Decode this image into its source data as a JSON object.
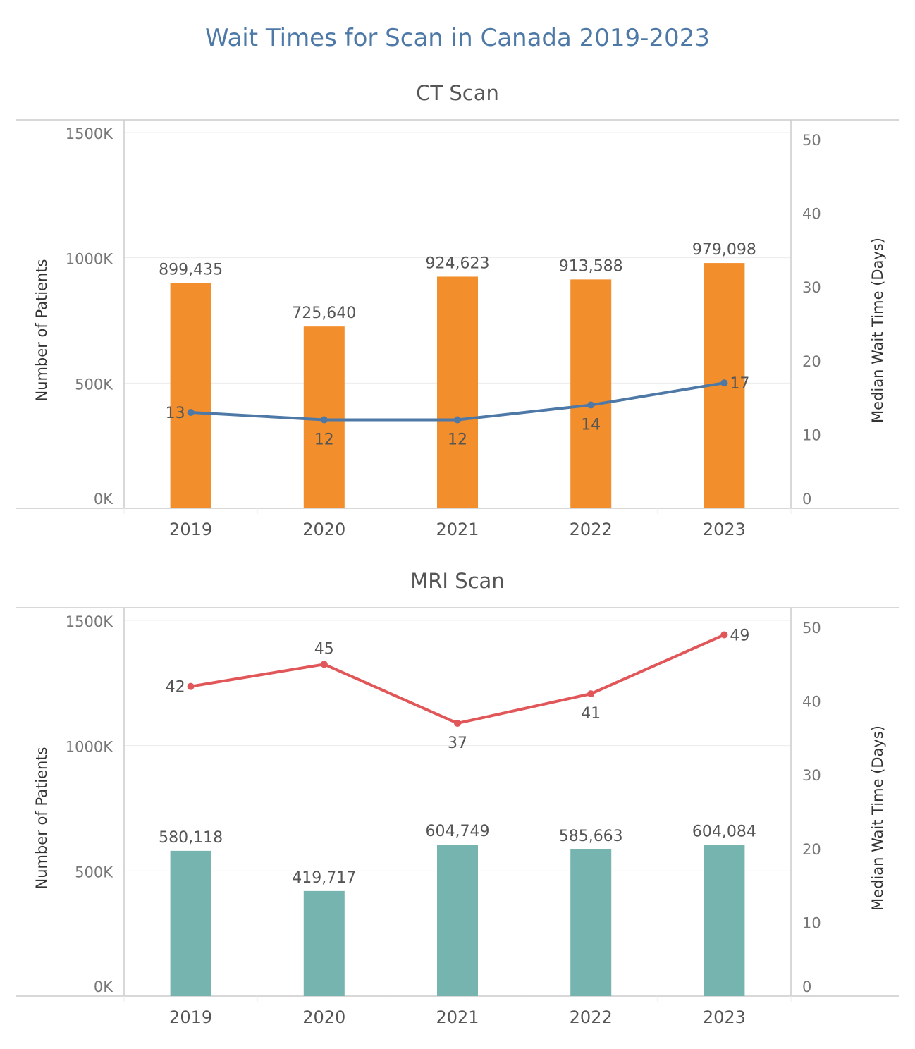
{
  "page_title": "Wait Times for Scan in Canada 2019-2023",
  "colors": {
    "title": "#4e79a7",
    "text": "#555555",
    "tick": "#777777",
    "axis": "#cccccc",
    "grid": "#ececec"
  },
  "chart_data": [
    {
      "type": "bar",
      "title": "CT Scan",
      "categories": [
        "2019",
        "2020",
        "2021",
        "2022",
        "2023"
      ],
      "ylabel": "Number of Patients",
      "y2label": "Median Wait Time  (Days)",
      "ylim": [
        0,
        1500000
      ],
      "y2lim": [
        0,
        50
      ],
      "yticks": [
        {
          "v": 0,
          "label": "0K"
        },
        {
          "v": 500000,
          "label": "500K"
        },
        {
          "v": 1000000,
          "label": "1000K"
        },
        {
          "v": 1500000,
          "label": "1500K"
        }
      ],
      "y2ticks": [
        {
          "v": 0,
          "label": "0"
        },
        {
          "v": 10,
          "label": "10"
        },
        {
          "v": 20,
          "label": "20"
        },
        {
          "v": 30,
          "label": "30"
        },
        {
          "v": 40,
          "label": "40"
        },
        {
          "v": 50,
          "label": "50"
        }
      ],
      "bar_color": "#f28e2b",
      "bars": [
        {
          "v": 899435,
          "label": "899,435"
        },
        {
          "v": 725640,
          "label": "725,640"
        },
        {
          "v": 924623,
          "label": "924,623"
        },
        {
          "v": 913588,
          "label": "913,588"
        },
        {
          "v": 979098,
          "label": "979,098"
        }
      ],
      "line_color": "#4e79a7",
      "line": [
        {
          "v": 13,
          "label": "13",
          "pos": "left"
        },
        {
          "v": 12,
          "label": "12",
          "pos": "below"
        },
        {
          "v": 12,
          "label": "12",
          "pos": "below"
        },
        {
          "v": 14,
          "label": "14",
          "pos": "below"
        },
        {
          "v": 17,
          "label": "17",
          "pos": "right"
        }
      ],
      "grid": true
    },
    {
      "type": "bar",
      "title": "MRI Scan",
      "categories": [
        "2019",
        "2020",
        "2021",
        "2022",
        "2023"
      ],
      "ylabel": "Number of Patients",
      "y2label": "Median Wait Time  (Days)",
      "ylim": [
        0,
        1500000
      ],
      "y2lim": [
        0,
        50
      ],
      "yticks": [
        {
          "v": 0,
          "label": "0K"
        },
        {
          "v": 500000,
          "label": "500K"
        },
        {
          "v": 1000000,
          "label": "1000K"
        },
        {
          "v": 1500000,
          "label": "1500K"
        }
      ],
      "y2ticks": [
        {
          "v": 0,
          "label": "0"
        },
        {
          "v": 10,
          "label": "10"
        },
        {
          "v": 20,
          "label": "20"
        },
        {
          "v": 30,
          "label": "30"
        },
        {
          "v": 40,
          "label": "40"
        },
        {
          "v": 50,
          "label": "50"
        }
      ],
      "bar_color": "#76b5af",
      "bars": [
        {
          "v": 580118,
          "label": "580,118"
        },
        {
          "v": 419717,
          "label": "419,717"
        },
        {
          "v": 604749,
          "label": "604,749"
        },
        {
          "v": 585663,
          "label": "585,663"
        },
        {
          "v": 604084,
          "label": "604,084"
        }
      ],
      "line_color": "#e15759",
      "line": [
        {
          "v": 42,
          "label": "42",
          "pos": "left"
        },
        {
          "v": 45,
          "label": "45",
          "pos": "above"
        },
        {
          "v": 37,
          "label": "37",
          "pos": "below"
        },
        {
          "v": 41,
          "label": "41",
          "pos": "below"
        },
        {
          "v": 49,
          "label": "49",
          "pos": "right"
        }
      ],
      "grid": true
    }
  ]
}
